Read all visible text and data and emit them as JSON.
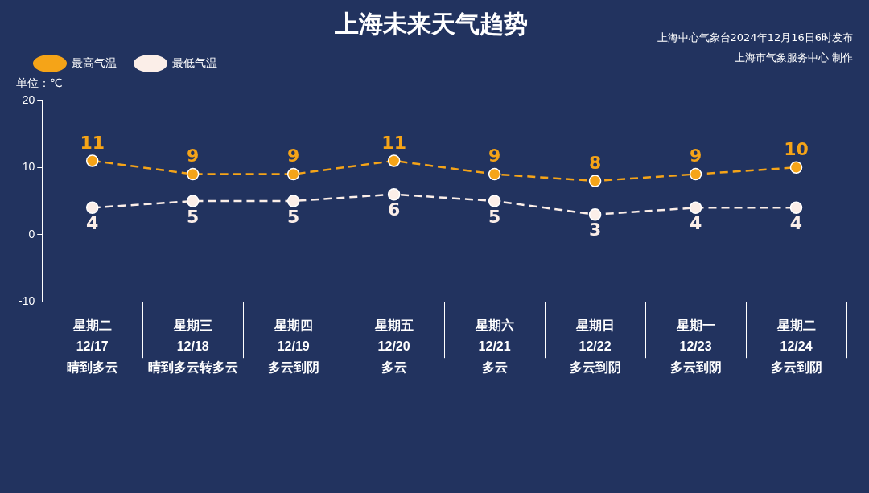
{
  "chart_data": {
    "type": "line",
    "title": "上海未来天气趋势",
    "ylabel": "单位：℃",
    "annotations": [
      "上海中心气象台2024年12月16日6时发布",
      "上海市气象服务中心 制作"
    ],
    "categories": [
      "星期二\n12/17\n晴到多云",
      "星期三\n12/18\n晴到多云转多云",
      "星期四\n12/19\n多云到阴",
      "星期五\n12/20\n多云",
      "星期六\n12/21\n多云",
      "星期日\n12/22\n多云到阴",
      "星期一\n12/23\n多云到阴",
      "星期二\n12/24\n多云到阴"
    ],
    "series": [
      {
        "name": "最高气温",
        "color": "#f5a418",
        "values": [
          11,
          9,
          9,
          11,
          9,
          8,
          9,
          10
        ]
      },
      {
        "name": "最低气温",
        "color": "#fbeee8",
        "values": [
          4,
          5,
          5,
          6,
          5,
          3,
          4,
          4
        ]
      }
    ],
    "ylim": [
      -10,
      20
    ],
    "yticks": [
      -10,
      0,
      10,
      20
    ],
    "grid": false,
    "legend": "top left",
    "marker": "circle",
    "line_style": "dashed",
    "data_labels": true
  }
}
